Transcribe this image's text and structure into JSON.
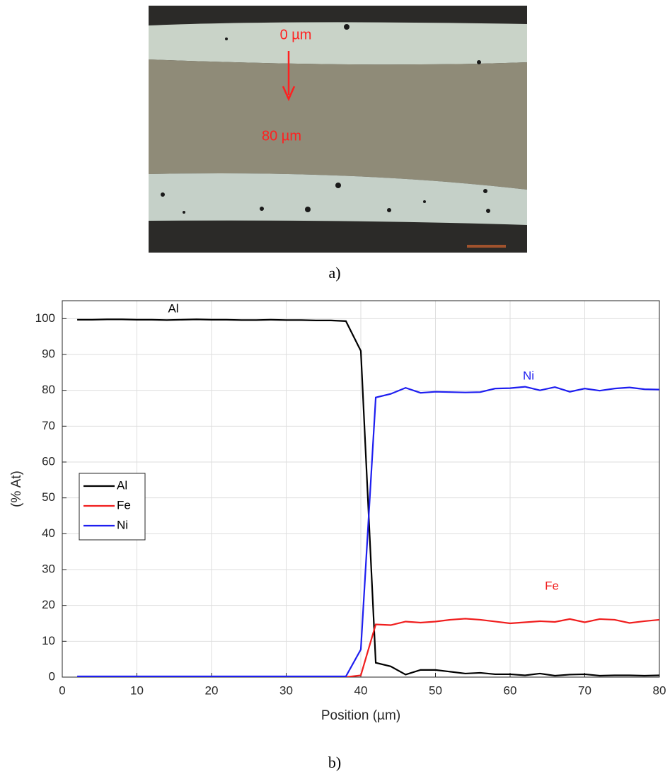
{
  "figure": {
    "micrograph_labels": [
      "0 µm",
      "80 µm"
    ],
    "caption_a": "a)",
    "caption_b": "b)"
  },
  "chart_data": {
    "type": "line",
    "xlabel": "Position (µm)",
    "ylabel": "(% At)",
    "x": [
      2,
      4,
      6,
      8,
      10,
      12,
      14,
      16,
      18,
      20,
      22,
      24,
      26,
      28,
      30,
      32,
      34,
      36,
      38,
      40,
      42,
      44,
      46,
      48,
      50,
      52,
      54,
      56,
      58,
      60,
      62,
      64,
      66,
      68,
      70,
      72,
      74,
      76,
      78,
      80
    ],
    "series": [
      {
        "name": "Al",
        "color": "#000000",
        "values": [
          99.7,
          99.7,
          99.8,
          99.8,
          99.7,
          99.7,
          99.6,
          99.7,
          99.8,
          99.7,
          99.7,
          99.6,
          99.6,
          99.7,
          99.6,
          99.6,
          99.5,
          99.5,
          99.3,
          91,
          4,
          3,
          0.7,
          2,
          2,
          1.5,
          1,
          1.2,
          0.8,
          0.8,
          0.5,
          1,
          0.4,
          0.7,
          0.8,
          0.4,
          0.5,
          0.5,
          0.4,
          0.5
        ]
      },
      {
        "name": "Fe",
        "color": "#f01e1e",
        "values": [
          0,
          0,
          0,
          0,
          0,
          0,
          0,
          0,
          0,
          0,
          0,
          0,
          0,
          0,
          0,
          0,
          0,
          0,
          0,
          0.5,
          14.7,
          14.5,
          15.5,
          15.2,
          15.5,
          16,
          16.3,
          16,
          15.5,
          15,
          15.3,
          15.6,
          15.4,
          16.2,
          15.3,
          16.2,
          16,
          15.1,
          15.6,
          16
        ]
      },
      {
        "name": "Ni",
        "color": "#1e1ef0",
        "values": [
          0.2,
          0.2,
          0.2,
          0.2,
          0.2,
          0.2,
          0.2,
          0.2,
          0.2,
          0.2,
          0.2,
          0.2,
          0.2,
          0.2,
          0.2,
          0.2,
          0.2,
          0.2,
          0.2,
          7.7,
          78,
          79,
          80.7,
          79.3,
          79.6,
          79.5,
          79.4,
          79.5,
          80.5,
          80.6,
          81,
          80,
          80.9,
          79.6,
          80.5,
          79.9,
          80.5,
          80.8,
          80.3,
          80.2
        ]
      }
    ],
    "annotations": [
      "Al",
      "Ni",
      "Fe"
    ],
    "xlim": [
      0,
      80
    ],
    "xticks": [
      0,
      10,
      20,
      30,
      40,
      50,
      60,
      70,
      80
    ],
    "ylim": [
      0,
      105
    ],
    "yticks": [
      0,
      10,
      20,
      30,
      40,
      50,
      60,
      70,
      80,
      90,
      100
    ],
    "grid": true,
    "legend": "center left"
  }
}
